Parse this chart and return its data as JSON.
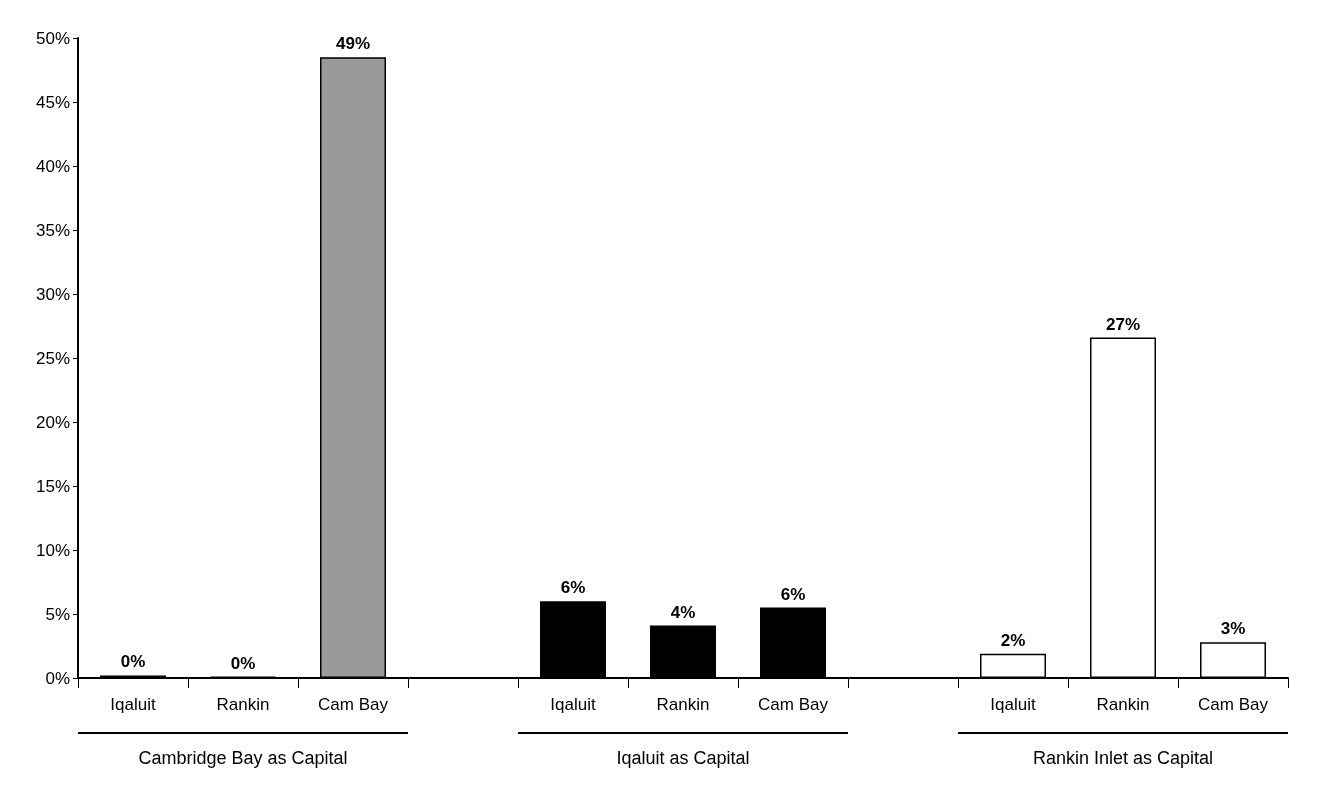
{
  "chart_data": {
    "type": "bar",
    "categories": [
      "Iqaluit",
      "Rankin",
      "Cam Bay",
      null,
      "Iqaluit",
      "Rankin",
      "Cam Bay",
      null,
      "Iqaluit",
      "Rankin",
      "Cam Bay"
    ],
    "values": [
      0.2,
      0.1,
      48.5,
      null,
      6.0,
      4.1,
      5.5,
      null,
      1.9,
      26.6,
      2.8
    ],
    "value_labels": [
      "0%",
      "0%",
      "49%",
      null,
      "6%",
      "4%",
      "6%",
      null,
      "2%",
      "27%",
      "3%"
    ],
    "colors": [
      "#000000",
      "#000000",
      "#9a9a9a",
      "#ffffff",
      "#000000",
      "#000000",
      "#000000",
      "#ffffff",
      "#ffffff",
      "#ffffff",
      "#ffffff"
    ],
    "ylim": [
      0,
      50
    ],
    "yticks": [
      {
        "value": 0,
        "label": "0%"
      },
      {
        "value": 5,
        "label": "5%"
      },
      {
        "value": 10,
        "label": "10%"
      },
      {
        "value": 15,
        "label": "15%"
      },
      {
        "value": 20,
        "label": "20%"
      },
      {
        "value": 25,
        "label": "25%"
      },
      {
        "value": 30,
        "label": "30%"
      },
      {
        "value": 35,
        "label": "35%"
      },
      {
        "value": 40,
        "label": "40%"
      },
      {
        "value": 45,
        "label": "45%"
      },
      {
        "value": 50,
        "label": "50%"
      }
    ],
    "annotations": [
      "Cambridge Bay as Capital",
      "Iqaluit as Capital",
      "Rankin Inlet as Capital"
    ],
    "grid": false
  }
}
